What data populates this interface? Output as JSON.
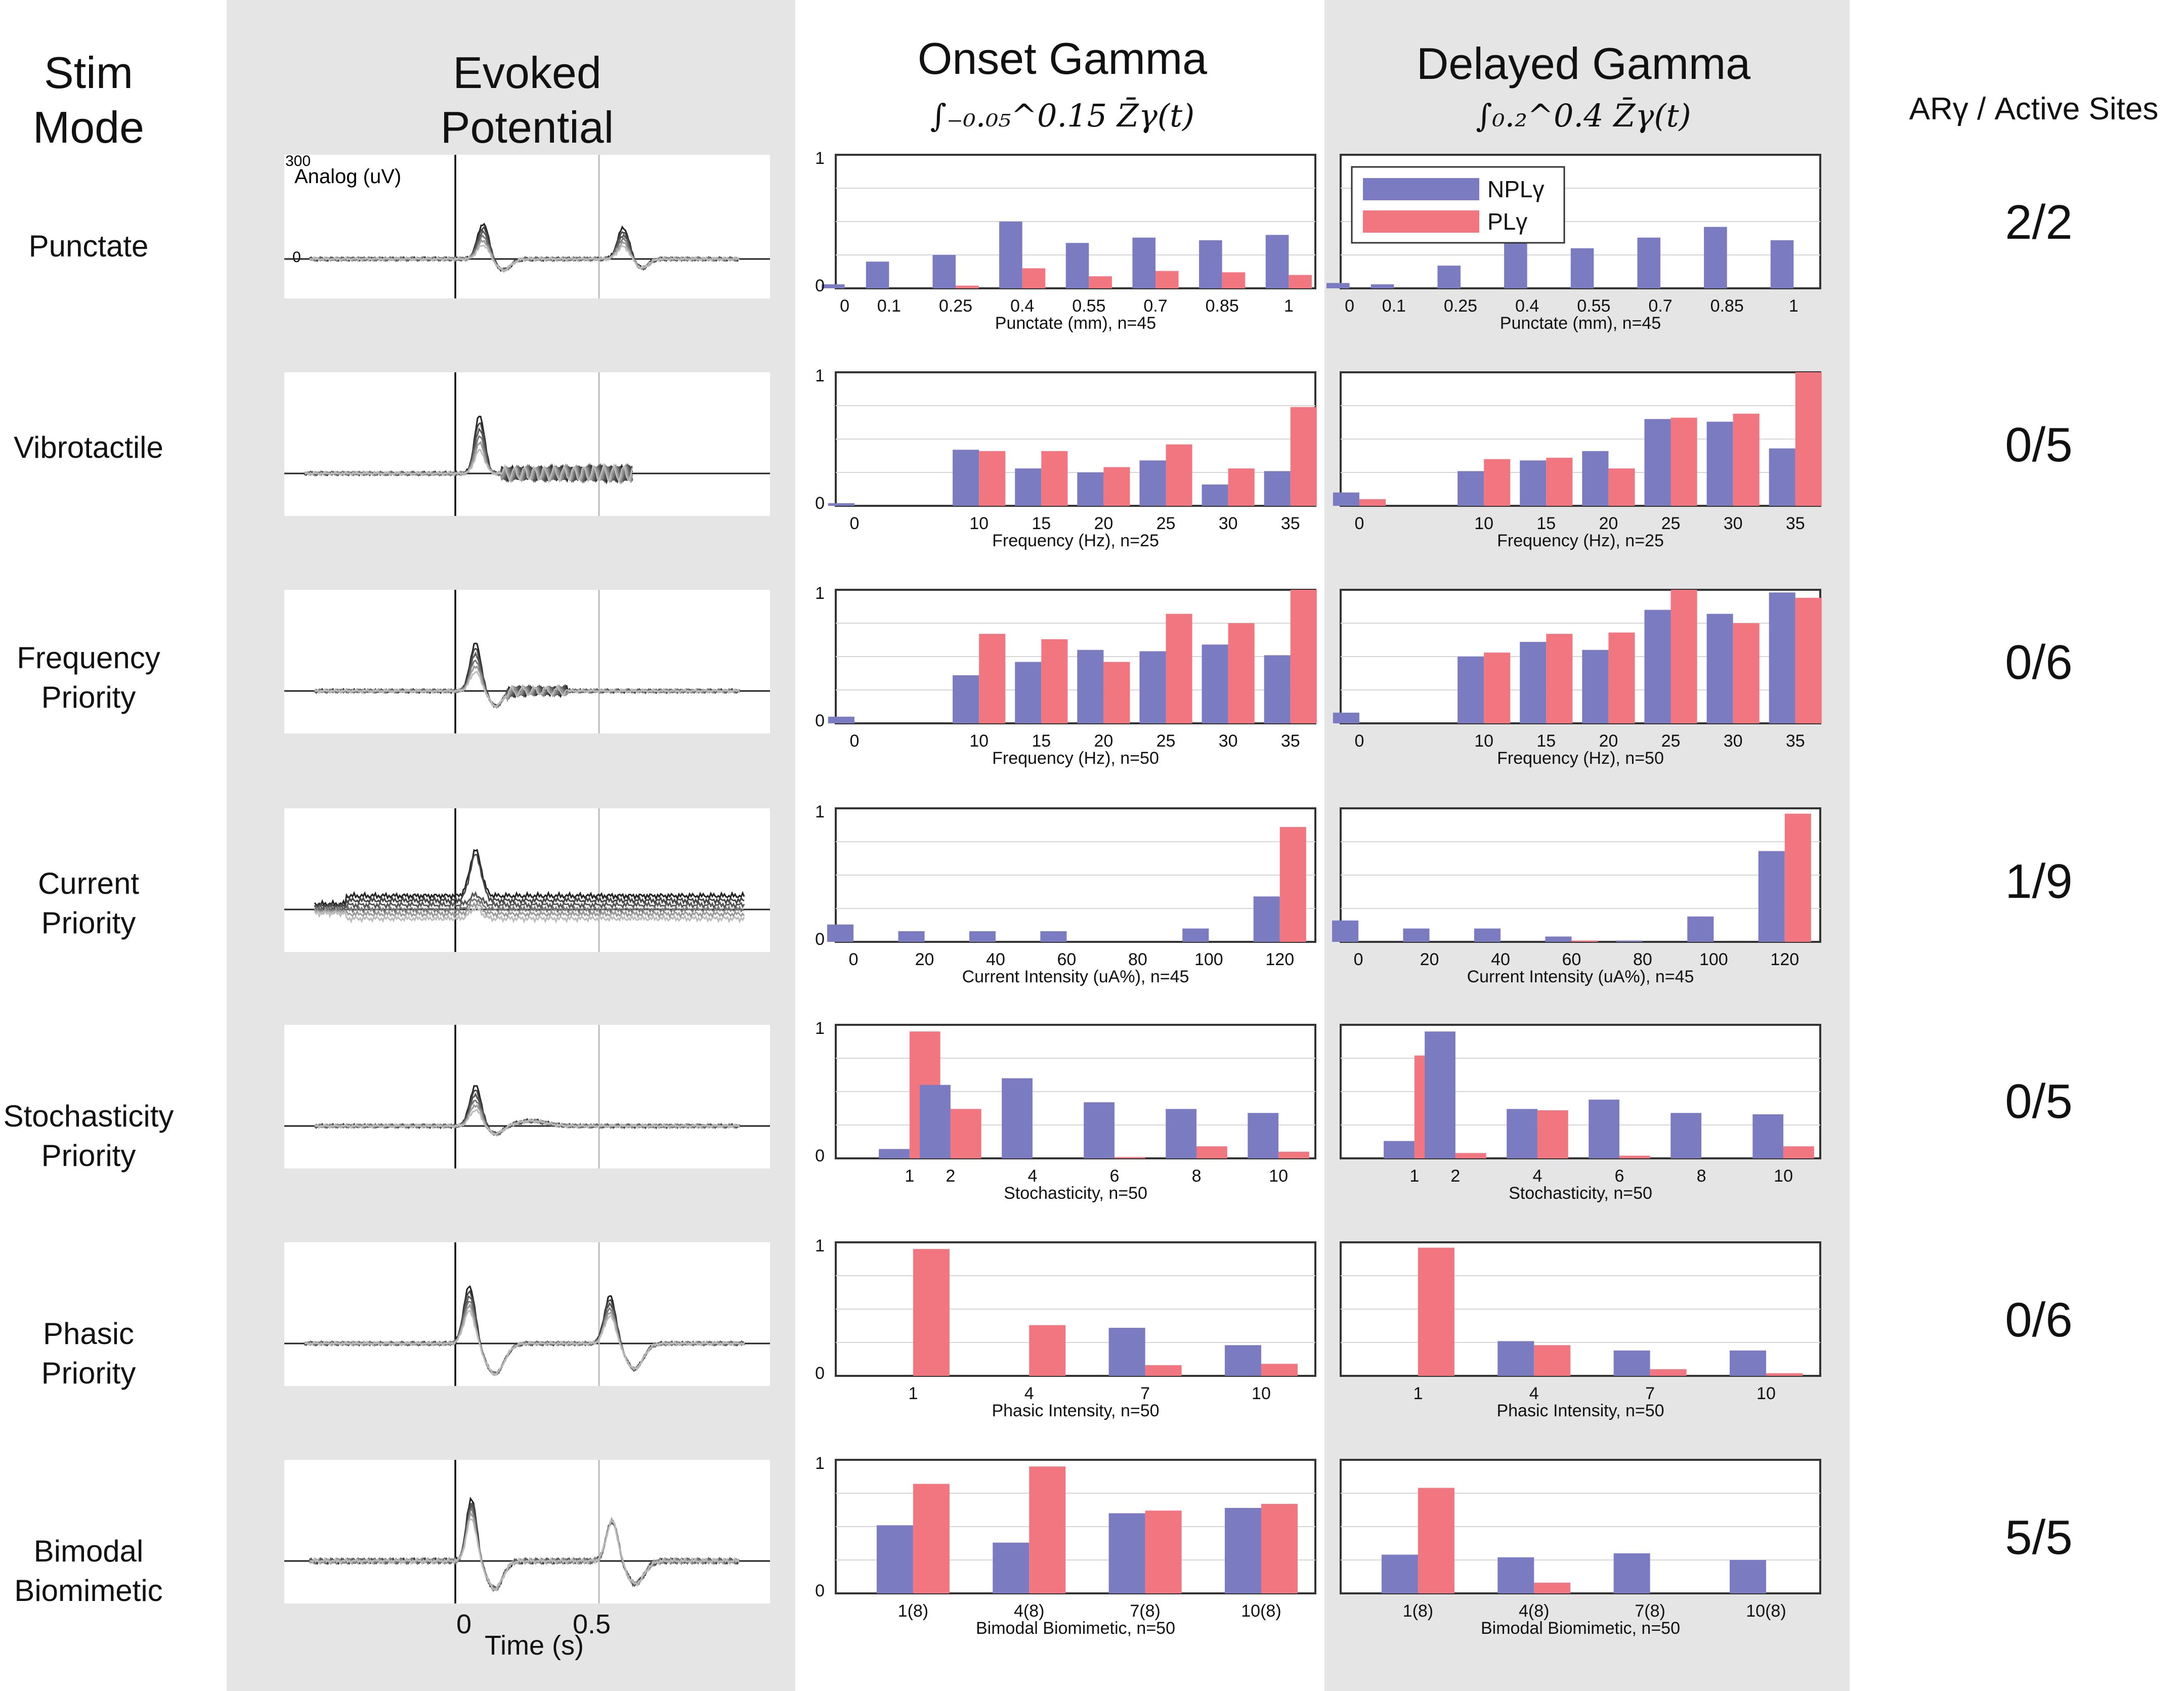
{
  "headers": {
    "stim_mode": "Stim\nMode",
    "evoked": "Evoked\nPotential",
    "onset": "Onset Gamma",
    "onset_formula": "∫₋₀.₀₅^0.15 Z̄γ(t)",
    "delayed": "Delayed Gamma",
    "delayed_formula": "∫₀.₂^0.4 Z̄γ(t)",
    "ar": "ARγ / Active Sites"
  },
  "legend": {
    "npl": "NPLγ",
    "pl": "PLγ",
    "npl_color": "#7b7bc2",
    "pl_color": "#f27680"
  },
  "evoked_axis": {
    "y_max": "300",
    "y_zero": "0",
    "analog_label": "Analog (uV)",
    "x_zero": "0",
    "x_half": "0.5",
    "x_label": "Time (s)"
  },
  "rows": [
    {
      "label": "Punctate",
      "ar": "2/2"
    },
    {
      "label": "Vibrotactile",
      "ar": "0/5"
    },
    {
      "label": "Frequency\nPriority",
      "ar": "0/6"
    },
    {
      "label": "Current\nPriority",
      "ar": "1/9"
    },
    {
      "label": "Stochasticity\nPriority",
      "ar": "0/5"
    },
    {
      "label": "Phasic\nPriority",
      "ar": "0/6"
    },
    {
      "label": "Bimodal\nBiomimetic",
      "ar": "5/5"
    }
  ],
  "chart_data": [
    {
      "panel": "onset",
      "row": 0,
      "type": "bar",
      "xlabel": "Punctate (mm), n=45",
      "x": [
        0,
        0.1,
        0.25,
        0.4,
        0.55,
        0.7,
        0.85,
        1
      ],
      "xlim": [
        -0.02,
        1.06
      ],
      "tick_labels": [
        "0",
        "0.1",
        "0.25",
        "0.4",
        "0.55",
        "0.7",
        "0.85",
        "1"
      ],
      "ylim": [
        0,
        1
      ],
      "ytick_labels": [
        "0",
        "1"
      ],
      "series": [
        {
          "name": "NPLγ",
          "values": [
            0.03,
            0.2,
            0.25,
            0.5,
            0.34,
            0.38,
            0.36,
            0.4
          ]
        },
        {
          "name": "PLγ",
          "values": [
            0,
            0,
            0.02,
            0.15,
            0.09,
            0.13,
            0.12,
            0.1
          ]
        }
      ]
    },
    {
      "panel": "delayed",
      "row": 0,
      "type": "bar",
      "xlabel": "Punctate (mm), n=45",
      "x": [
        0,
        0.1,
        0.25,
        0.4,
        0.55,
        0.7,
        0.85,
        1
      ],
      "xlim": [
        -0.02,
        1.06
      ],
      "tick_labels": [
        "0",
        "0.1",
        "0.25",
        "0.4",
        "0.55",
        "0.7",
        "0.85",
        "1"
      ],
      "ylim": [
        0,
        1
      ],
      "ytick_labels": [],
      "series": [
        {
          "name": "NPLγ",
          "values": [
            0.04,
            0.03,
            0.17,
            0.42,
            0.3,
            0.38,
            0.46,
            0.36
          ]
        },
        {
          "name": "PLγ",
          "values": [
            0,
            0,
            0,
            0,
            0,
            0,
            0,
            0
          ]
        }
      ]
    },
    {
      "panel": "onset",
      "row": 1,
      "type": "bar",
      "xlabel": "Frequency (Hz), n=25",
      "x": [
        0,
        10,
        15,
        20,
        25,
        30,
        35
      ],
      "xlim": [
        -1.5,
        37
      ],
      "tick_labels": [
        "0",
        "10",
        "15",
        "20",
        "25",
        "30",
        "35"
      ],
      "ylim": [
        0,
        1
      ],
      "ytick_labels": [
        "0",
        "1"
      ],
      "series": [
        {
          "name": "NPLγ",
          "values": [
            0.02,
            0.42,
            0.28,
            0.25,
            0.34,
            0.16,
            0.26
          ]
        },
        {
          "name": "PLγ",
          "values": [
            0,
            0.41,
            0.41,
            0.29,
            0.46,
            0.28,
            0.74
          ]
        }
      ]
    },
    {
      "panel": "delayed",
      "row": 1,
      "type": "bar",
      "xlabel": "Frequency (Hz), n=25",
      "x": [
        0,
        10,
        15,
        20,
        25,
        30,
        35
      ],
      "xlim": [
        -1.5,
        37
      ],
      "tick_labels": [
        "0",
        "10",
        "15",
        "20",
        "25",
        "30",
        "35"
      ],
      "ylim": [
        0,
        1
      ],
      "ytick_labels": [],
      "series": [
        {
          "name": "NPLγ",
          "values": [
            0.1,
            0.26,
            0.34,
            0.41,
            0.65,
            0.63,
            0.43
          ]
        },
        {
          "name": "PLγ",
          "values": [
            0.05,
            0.35,
            0.36,
            0.28,
            0.66,
            0.69,
            1.0
          ]
        }
      ]
    },
    {
      "panel": "onset",
      "row": 2,
      "type": "bar",
      "xlabel": "Frequency (Hz), n=50",
      "x": [
        0,
        10,
        15,
        20,
        25,
        30,
        35
      ],
      "xlim": [
        -1.5,
        37
      ],
      "tick_labels": [
        "0",
        "10",
        "15",
        "20",
        "25",
        "30",
        "35"
      ],
      "ylim": [
        0,
        1
      ],
      "ytick_labels": [
        "0",
        "1"
      ],
      "series": [
        {
          "name": "NPLγ",
          "values": [
            0.05,
            0.36,
            0.46,
            0.55,
            0.54,
            0.59,
            0.51
          ]
        },
        {
          "name": "PLγ",
          "values": [
            0,
            0.67,
            0.63,
            0.46,
            0.82,
            0.75,
            1.0
          ]
        }
      ]
    },
    {
      "panel": "delayed",
      "row": 2,
      "type": "bar",
      "xlabel": "Frequency (Hz), n=50",
      "x": [
        0,
        10,
        15,
        20,
        25,
        30,
        35
      ],
      "xlim": [
        -1.5,
        37
      ],
      "tick_labels": [
        "0",
        "10",
        "15",
        "20",
        "25",
        "30",
        "35"
      ],
      "ylim": [
        0,
        1
      ],
      "ytick_labels": [],
      "series": [
        {
          "name": "NPLγ",
          "values": [
            0.08,
            0.5,
            0.61,
            0.55,
            0.85,
            0.82,
            0.98
          ]
        },
        {
          "name": "PLγ",
          "values": [
            0,
            0.53,
            0.67,
            0.68,
            1.0,
            0.75,
            0.94
          ]
        }
      ]
    },
    {
      "panel": "onset",
      "row": 3,
      "type": "bar",
      "xlabel": "Current Intensity (uA%), n=45",
      "x": [
        0,
        20,
        40,
        60,
        80,
        100,
        120
      ],
      "xlim": [
        -5,
        130
      ],
      "tick_labels": [
        "0",
        "20",
        "40",
        "60",
        "80",
        "100",
        "120"
      ],
      "ylim": [
        0,
        1
      ],
      "ytick_labels": [
        "0",
        "1"
      ],
      "series": [
        {
          "name": "NPLγ",
          "values": [
            0.13,
            0.08,
            0.08,
            0.08,
            0,
            0.1,
            0.34
          ]
        },
        {
          "name": "PLγ",
          "values": [
            0,
            0,
            0,
            0,
            0,
            0,
            0.86
          ]
        }
      ]
    },
    {
      "panel": "delayed",
      "row": 3,
      "type": "bar",
      "xlabel": "Current Intensity (uA%), n=45",
      "x": [
        0,
        20,
        40,
        60,
        80,
        100,
        120
      ],
      "xlim": [
        -5,
        130
      ],
      "tick_labels": [
        "0",
        "20",
        "40",
        "60",
        "80",
        "100",
        "120"
      ],
      "ylim": [
        0,
        1
      ],
      "ytick_labels": [],
      "series": [
        {
          "name": "NPLγ",
          "values": [
            0.16,
            0.1,
            0.1,
            0.04,
            0.01,
            0.19,
            0.68
          ]
        },
        {
          "name": "PLγ",
          "values": [
            0,
            0,
            0,
            0.01,
            0,
            0,
            0.96
          ]
        }
      ]
    },
    {
      "panel": "onset",
      "row": 4,
      "type": "bar",
      "xlabel": "Stochasticity, n=50",
      "x": [
        1,
        2,
        4,
        6,
        8,
        10
      ],
      "xlim": [
        -0.8,
        10.9
      ],
      "tick_labels": [
        "1",
        "2",
        "4",
        "6",
        "8",
        "10"
      ],
      "ylim": [
        0,
        1
      ],
      "ytick_labels": [
        "0",
        "1"
      ],
      "series": [
        {
          "name": "NPLγ",
          "values": [
            0.07,
            0.55,
            0.6,
            0.42,
            0.37,
            0.34
          ]
        },
        {
          "name": "PLγ",
          "values": [
            0.95,
            0.37,
            0,
            0.01,
            0.09,
            0.05
          ]
        }
      ]
    },
    {
      "panel": "delayed",
      "row": 4,
      "type": "bar",
      "xlabel": "Stochasticity, n=50",
      "x": [
        1,
        2,
        4,
        6,
        8,
        10
      ],
      "xlim": [
        -0.8,
        10.9
      ],
      "tick_labels": [
        "1",
        "2",
        "4",
        "6",
        "8",
        "10"
      ],
      "ylim": [
        0,
        1
      ],
      "ytick_labels": [],
      "series": [
        {
          "name": "NPLγ",
          "values": [
            0.13,
            0.95,
            0.37,
            0.44,
            0.34,
            0.33
          ]
        },
        {
          "name": "PLγ",
          "values": [
            0.77,
            0.04,
            0.36,
            0.02,
            0,
            0.09
          ]
        }
      ]
    },
    {
      "panel": "onset",
      "row": 5,
      "type": "bar",
      "xlabel": "Phasic Intensity, n=50",
      "x": [
        1,
        4,
        7,
        10
      ],
      "xlim": [
        -1,
        11.4
      ],
      "tick_labels": [
        "1",
        "4",
        "7",
        "10"
      ],
      "ylim": [
        0,
        1
      ],
      "ytick_labels": [
        "0",
        "1"
      ],
      "series": [
        {
          "name": "NPLγ",
          "values": [
            0,
            0,
            0.36,
            0.23
          ]
        },
        {
          "name": "PLγ",
          "values": [
            0.95,
            0.38,
            0.08,
            0.09
          ]
        }
      ]
    },
    {
      "panel": "delayed",
      "row": 5,
      "type": "bar",
      "xlabel": "Phasic Intensity, n=50",
      "x": [
        1,
        4,
        7,
        10
      ],
      "xlim": [
        -1,
        11.4
      ],
      "tick_labels": [
        "1",
        "4",
        "7",
        "10"
      ],
      "ylim": [
        0,
        1
      ],
      "ytick_labels": [],
      "series": [
        {
          "name": "NPLγ",
          "values": [
            0,
            0.26,
            0.19,
            0.19
          ]
        },
        {
          "name": "PLγ",
          "values": [
            0.96,
            0.23,
            0.05,
            0.02
          ]
        }
      ]
    },
    {
      "panel": "onset",
      "row": 6,
      "type": "bar",
      "xlabel": "Bimodal Biomimetic, n=50",
      "x": [
        1,
        4,
        7,
        10
      ],
      "xlim": [
        -1,
        11.4
      ],
      "tick_labels": [
        "1(8)",
        "4(8)",
        "7(8)",
        "10(8)"
      ],
      "ylim": [
        0,
        1
      ],
      "ytick_labels": [
        "0",
        "1"
      ],
      "series": [
        {
          "name": "NPLγ",
          "values": [
            0.51,
            0.38,
            0.6,
            0.64
          ]
        },
        {
          "name": "PLγ",
          "values": [
            0.82,
            0.95,
            0.62,
            0.67
          ]
        }
      ]
    },
    {
      "panel": "delayed",
      "row": 6,
      "type": "bar",
      "xlabel": "Bimodal Biomimetic, n=50",
      "x": [
        1,
        4,
        7,
        10
      ],
      "xlim": [
        -1,
        11.4
      ],
      "tick_labels": [
        "1(8)",
        "4(8)",
        "7(8)",
        "10(8)"
      ],
      "ylim": [
        0,
        1
      ],
      "ytick_labels": [],
      "series": [
        {
          "name": "NPLγ",
          "values": [
            0.29,
            0.27,
            0.3,
            0.25
          ]
        },
        {
          "name": "PLγ",
          "values": [
            0.79,
            0.08,
            0,
            0
          ]
        }
      ]
    }
  ]
}
